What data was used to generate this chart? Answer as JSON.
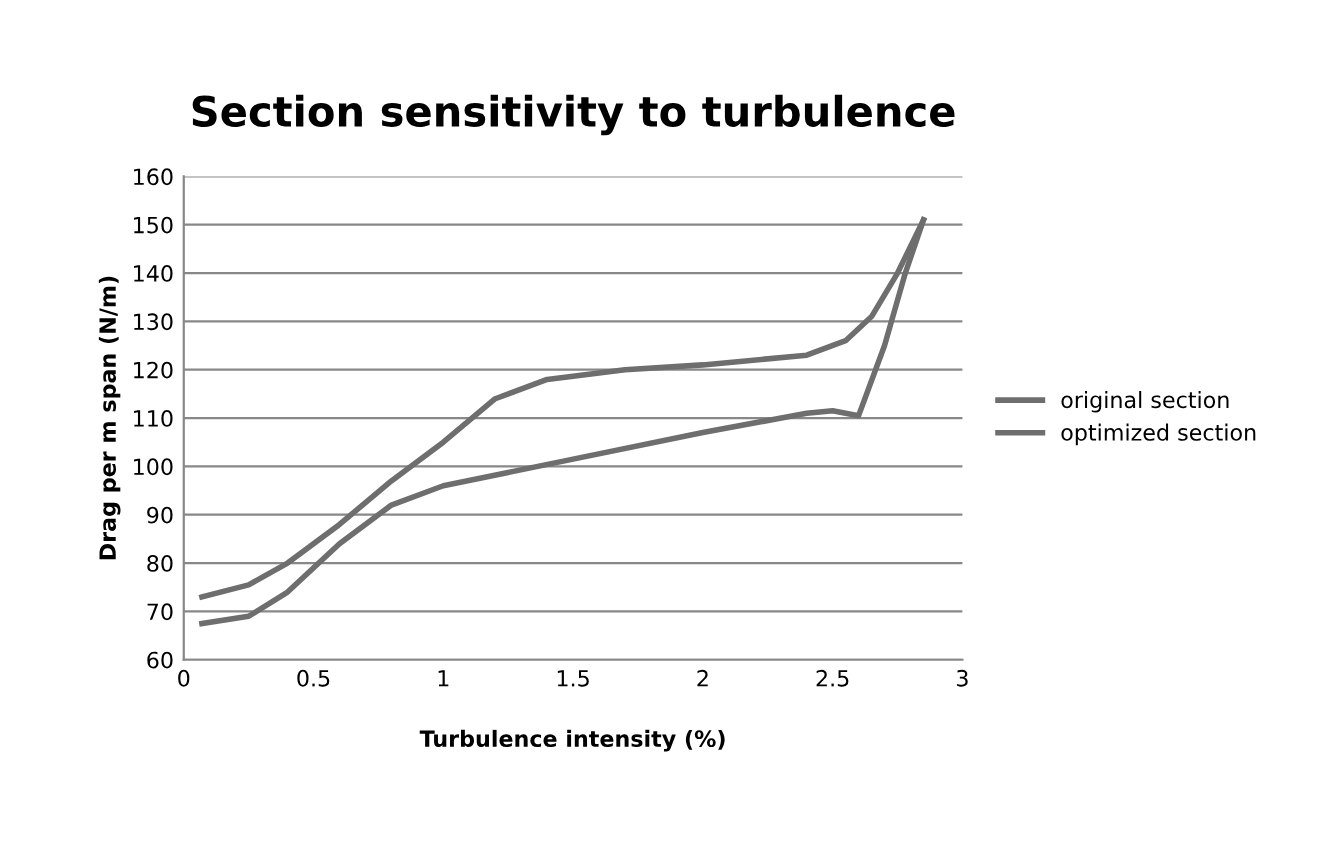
{
  "chart_data": {
    "type": "line",
    "title": "Section sensitivity to turbulence",
    "xlabel": "Turbulence intensity (%)",
    "ylabel": "Drag per m span (N/m)",
    "series": [
      {
        "name": "original section",
        "color": "#6e6e6e",
        "x": [
          0.07,
          0.25,
          0.4,
          0.6,
          0.8,
          1.0,
          1.2,
          1.4,
          1.7,
          2.0,
          2.4,
          2.55,
          2.65,
          2.75,
          2.85
        ],
        "values": [
          73,
          75.5,
          80,
          88,
          97,
          105,
          114,
          118,
          120,
          121,
          123,
          126,
          131,
          140,
          151
        ]
      },
      {
        "name": "optimized section",
        "color": "#6e6e6e",
        "x": [
          0.07,
          0.25,
          0.4,
          0.6,
          0.8,
          1.0,
          1.5,
          2.0,
          2.4,
          2.5,
          2.6,
          2.7,
          2.78,
          2.85
        ],
        "values": [
          67.5,
          69,
          74,
          84,
          92,
          96,
          101.5,
          107,
          111,
          111.5,
          110.5,
          125,
          140,
          151
        ]
      }
    ],
    "xlim": [
      0,
      3
    ],
    "xticks": [
      0,
      0.5,
      1,
      1.5,
      2,
      2.5,
      3
    ],
    "ylim": [
      60,
      160
    ],
    "yticks": [
      60,
      70,
      80,
      90,
      100,
      110,
      120,
      130,
      140,
      150,
      160
    ],
    "grid": "y",
    "legend": "right",
    "marker": "none",
    "line_style": "solid"
  }
}
